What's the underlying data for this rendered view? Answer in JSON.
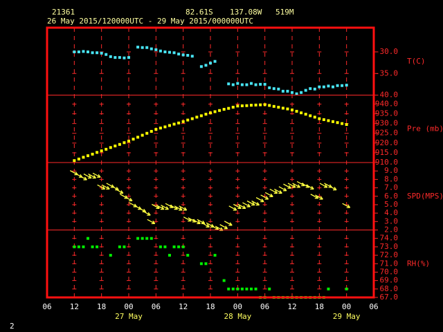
{
  "chart_data": {
    "type": "meteogram",
    "station": "21361",
    "latitude": "82.61S",
    "longitude": "137.08W",
    "elevation": "519M",
    "period": "26 May 2015/120000UTC - 29 May 2015/000000UTC",
    "xlim": [
      -6,
      66
    ],
    "xticks": [
      {
        "value": -6,
        "label": "06"
      },
      {
        "value": 0,
        "label": "12"
      },
      {
        "value": 6,
        "label": "18"
      },
      {
        "value": 12,
        "label": "00"
      },
      {
        "value": 18,
        "label": "06"
      },
      {
        "value": 24,
        "label": "12"
      },
      {
        "value": 30,
        "label": "18"
      },
      {
        "value": 36,
        "label": "00"
      },
      {
        "value": 42,
        "label": "06"
      },
      {
        "value": 48,
        "label": "12"
      },
      {
        "value": 54,
        "label": "18"
      },
      {
        "value": 60,
        "label": "00"
      },
      {
        "value": 66,
        "label": "06"
      }
    ],
    "day_labels": [
      {
        "value": 12,
        "label": "27 May"
      },
      {
        "value": 36,
        "label": "28 May"
      },
      {
        "value": 60,
        "label": "29 May"
      }
    ],
    "panels": [
      {
        "type": "scatter",
        "name": "T(C)",
        "color": "#48e4f4",
        "ylim": [
          -40,
          -24.4
        ],
        "yticks": [
          {
            "value": -30,
            "label": "-30.0"
          },
          {
            "value": -35,
            "label": "-35.0"
          },
          {
            "value": -40,
            "label": "-40.0"
          }
        ],
        "values": [
          -30.0,
          -30.0,
          -29.9,
          -30.0,
          -30.2,
          -30.2,
          -30.3,
          -30.6,
          -31.1,
          -31.3,
          -31.3,
          -31.4,
          -31.3,
          null,
          -28.9,
          -29.0,
          -29.0,
          -29.3,
          -29.5,
          -29.8,
          -30.0,
          -30.1,
          -30.2,
          -30.5,
          -30.7,
          -30.8,
          -31.0,
          null,
          -33.4,
          -33.1,
          -32.6,
          -32.2,
          null,
          null,
          -37.4,
          -37.6,
          -37.3,
          -37.6,
          -37.6,
          -37.3,
          -37.6,
          -37.5,
          -37.5,
          -38.3,
          -38.5,
          -38.6,
          -39.1,
          -39.1,
          -39.4,
          -39.7,
          -39.4,
          -38.9,
          -38.5,
          -38.6,
          -38.1,
          -38.1,
          -37.9,
          -38.1,
          -37.8,
          -37.8,
          -37.7
        ]
      },
      {
        "type": "scatter",
        "name": "Pre (mb)",
        "color": "#ffff00",
        "ylim": [
          910,
          944.6
        ],
        "yticks": [
          {
            "value": 940,
            "label": "940.0"
          },
          {
            "value": 935,
            "label": "935.0"
          },
          {
            "value": 930,
            "label": "930.0"
          },
          {
            "value": 925,
            "label": "925.0"
          },
          {
            "value": 920,
            "label": "920.0"
          },
          {
            "value": 915,
            "label": "915.0"
          },
          {
            "value": 910,
            "label": "910.0"
          }
        ],
        "values": [
          911,
          911.8,
          912.7,
          913.5,
          914.3,
          915.2,
          916,
          916.8,
          917.7,
          918.5,
          919.3,
          920.2,
          921,
          922,
          923,
          924,
          925,
          926,
          927,
          927.7,
          928.3,
          929,
          929.7,
          930.3,
          931,
          931.8,
          932.5,
          933.3,
          934,
          934.8,
          935.5,
          936.1,
          936.7,
          937.3,
          937.8,
          938.4,
          939,
          939.1,
          939.2,
          939.4,
          939.5,
          939.6,
          939.7,
          939.3,
          938.8,
          938.4,
          937.9,
          937.5,
          937,
          936.3,
          935.5,
          934.8,
          934,
          933.3,
          932.5,
          932,
          931.5,
          931,
          930.5,
          930,
          929.5
        ]
      },
      {
        "type": "arrows",
        "name": "SPD(MPS)",
        "color": "#ffff40",
        "ylim": [
          2,
          10
        ],
        "yticks": [
          {
            "value": 9,
            "label": "9.0"
          },
          {
            "value": 8,
            "label": "8.0"
          },
          {
            "value": 7,
            "label": "7.0"
          },
          {
            "value": 6,
            "label": "6.0"
          },
          {
            "value": 5,
            "label": "5.0"
          },
          {
            "value": 4,
            "label": "4.0"
          },
          {
            "value": 3,
            "label": "3.0"
          },
          {
            "value": 2,
            "label": "2.0"
          }
        ],
        "values": [
          8.8,
          8.5,
          8.2,
          8.4,
          8.4,
          8.5,
          7.1,
          7.1,
          7.3,
          7.0,
          6.6,
          6.0,
          5.7,
          5.0,
          4.7,
          4.4,
          4.0,
          3.0,
          4.8,
          4.7,
          4.7,
          4.9,
          4.7,
          4.6,
          4.6,
          3.3,
          3.2,
          3.0,
          3.0,
          2.6,
          2.6,
          2.3,
          2.2,
          2.4,
          2.8,
          4.6,
          4.8,
          4.8,
          5.0,
          5.2,
          5.2,
          5.6,
          5.9,
          6.2,
          6.6,
          6.6,
          6.9,
          7.2,
          7.3,
          7.3,
          7.5,
          7.3,
          7.1,
          6.0,
          5.9,
          7.3,
          7.3,
          7.0,
          null,
          null,
          4.9
        ]
      },
      {
        "type": "scatter",
        "name": "RH(%)",
        "color": "#00ee00",
        "ylim": [
          67,
          75
        ],
        "yticks": [
          {
            "value": 74,
            "label": "74.0"
          },
          {
            "value": 73,
            "label": "73.0"
          },
          {
            "value": 72,
            "label": "72.0"
          },
          {
            "value": 71,
            "label": "71.0"
          },
          {
            "value": 70,
            "label": "70.0"
          },
          {
            "value": 69,
            "label": "69.0"
          },
          {
            "value": 68,
            "label": "68.0"
          },
          {
            "value": 67,
            "label": "67.0"
          }
        ],
        "values": [
          73,
          73,
          73,
          74,
          73,
          73,
          null,
          null,
          72,
          null,
          73,
          73,
          null,
          null,
          74,
          74,
          74,
          74,
          null,
          73,
          73,
          72,
          73,
          73,
          73,
          72,
          null,
          null,
          71,
          71,
          null,
          72,
          null,
          69,
          68,
          68,
          68,
          68,
          68,
          68,
          68,
          67,
          67,
          68,
          67,
          67,
          67,
          67,
          67,
          67,
          67,
          67,
          67,
          67,
          67,
          67,
          68,
          null,
          null,
          null,
          68
        ]
      }
    ]
  },
  "footer": "2"
}
